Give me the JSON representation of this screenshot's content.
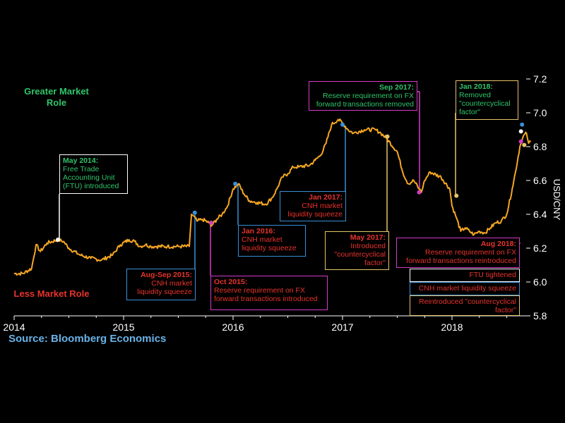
{
  "source": "Source: Bloomberg Economics",
  "roles": {
    "greater": "Greater Market Role",
    "less": "Less Market Role"
  },
  "colors": {
    "line": "#f5a623",
    "green": "#2fc56a",
    "red": "#e8332b",
    "blue": "#3a8fd6",
    "magenta": "#d43cc6",
    "yellow": "#e6c36a",
    "white": "#ffffff",
    "source": "#6ab2e6"
  },
  "annotations": {
    "may2014": {
      "header": "May 2014:",
      "body": "Free Trade Accounting Unit (FTU) introduced"
    },
    "aug2015": {
      "header": "Aug-Sep 2015:",
      "body": "CNH market liquidity squeeze"
    },
    "oct2015": {
      "header": "Oct 2015:",
      "body": "Reserve requirement on FX forward transactions introduced"
    },
    "jan2016": {
      "header": "Jan 2016:",
      "body": "CNH market liquidity squeeze"
    },
    "jan2017": {
      "header": "Jan 2017:",
      "body": "CNH market liquidity squeeze"
    },
    "may2017": {
      "header": "May 2017:",
      "body": "Introduced \"countercyclical factor\""
    },
    "sep2017": {
      "header": "Sep 2017:",
      "body": "Reserve requirement on FX forward transactions removed"
    },
    "jan2018": {
      "header": "Jan 2018:",
      "body": "Removed \"countercyclical factor\""
    },
    "aug2018": {
      "header": "Aug 2018:",
      "body": "Reserve requirement on FX forward transactions reintroduced"
    },
    "ftu_tightened": {
      "body": "FTU tightened"
    },
    "cnh_squeeze": {
      "body": "CNH market liquidity squeeze"
    },
    "reintroduced": {
      "body": "Reintroduced \"countercyclical factor\""
    }
  },
  "chart_data": {
    "type": "line",
    "title": "",
    "xlabel": "",
    "ylabel": "USD/CNY",
    "xlim": [
      2014.0,
      2018.72
    ],
    "ylim": [
      5.8,
      7.2
    ],
    "x_ticks": [
      {
        "value": 2014,
        "label": "2014"
      },
      {
        "value": 2015,
        "label": "2015"
      },
      {
        "value": 2016,
        "label": "2016"
      },
      {
        "value": 2017,
        "label": "2017"
      },
      {
        "value": 2018,
        "label": "2018"
      }
    ],
    "y_ticks": [
      {
        "value": 5.8,
        "label": "5.8"
      },
      {
        "value": 6.0,
        "label": "6.0"
      },
      {
        "value": 6.2,
        "label": "6.2"
      },
      {
        "value": 6.4,
        "label": "6.4"
      },
      {
        "value": 6.6,
        "label": "6.6"
      },
      {
        "value": 6.8,
        "label": "6.8"
      },
      {
        "value": 7.0,
        "label": "7.0"
      },
      {
        "value": 7.2,
        "label": "7.2"
      }
    ],
    "y_axis_position": "right",
    "grid": false,
    "series": [
      {
        "x": [
          2014.0,
          2014.08,
          2014.16,
          2014.2,
          2014.24,
          2014.3,
          2014.4,
          2014.45,
          2014.5,
          2014.6,
          2014.7,
          2014.8,
          2014.9,
          2014.97,
          2015.05,
          2015.1,
          2015.15,
          2015.2,
          2015.25,
          2015.3,
          2015.4,
          2015.5,
          2015.6,
          2015.62,
          2015.64,
          2015.67,
          2015.72,
          2015.78,
          2015.8,
          2015.85,
          2015.9,
          2015.95,
          2016.0,
          2016.05,
          2016.1,
          2016.15,
          2016.22,
          2016.3,
          2016.36,
          2016.4,
          2016.45,
          2016.5,
          2016.55,
          2016.6,
          2016.7,
          2016.75,
          2016.8,
          2016.85,
          2016.9,
          2016.96,
          2017.0,
          2017.05,
          2017.1,
          2017.2,
          2017.3,
          2017.35,
          2017.4,
          2017.5,
          2017.55,
          2017.6,
          2017.65,
          2017.7,
          2017.72,
          2017.75,
          2017.8,
          2017.9,
          2017.98,
          2018.0,
          2018.04,
          2018.08,
          2018.12,
          2018.16,
          2018.2,
          2018.25,
          2018.3,
          2018.35,
          2018.4,
          2018.45,
          2018.5,
          2018.55,
          2018.58,
          2018.62,
          2018.65,
          2018.68,
          2018.7,
          2018.72
        ],
        "values": [
          6.05,
          6.05,
          6.08,
          6.22,
          6.18,
          6.23,
          6.25,
          6.24,
          6.2,
          6.16,
          6.14,
          6.13,
          6.16,
          6.22,
          6.25,
          6.24,
          6.21,
          6.22,
          6.21,
          6.21,
          6.21,
          6.21,
          6.21,
          6.4,
          6.39,
          6.36,
          6.37,
          6.35,
          6.33,
          6.37,
          6.4,
          6.45,
          6.55,
          6.58,
          6.52,
          6.48,
          6.47,
          6.46,
          6.5,
          6.55,
          6.62,
          6.64,
          6.68,
          6.68,
          6.69,
          6.72,
          6.75,
          6.82,
          6.93,
          6.96,
          6.94,
          6.9,
          6.88,
          6.9,
          6.9,
          6.88,
          6.85,
          6.77,
          6.65,
          6.58,
          6.6,
          6.55,
          6.53,
          6.6,
          6.65,
          6.62,
          6.55,
          6.45,
          6.38,
          6.3,
          6.32,
          6.3,
          6.28,
          6.3,
          6.29,
          6.32,
          6.35,
          6.36,
          6.4,
          6.55,
          6.65,
          6.8,
          6.86,
          6.88,
          6.82,
          6.83
        ]
      }
    ],
    "event_markers": [
      {
        "x": 2014.4,
        "y": 6.25,
        "color": "#ffffff"
      },
      {
        "x": 2015.65,
        "y": 6.41,
        "color": "#3a8fd6"
      },
      {
        "x": 2015.8,
        "y": 6.35,
        "color": "#d43cc6"
      },
      {
        "x": 2016.02,
        "y": 6.58,
        "color": "#3a8fd6"
      },
      {
        "x": 2017.0,
        "y": 6.93,
        "color": "#3a8fd6"
      },
      {
        "x": 2017.41,
        "y": 6.86,
        "color": "#e6c36a"
      },
      {
        "x": 2017.7,
        "y": 6.53,
        "color": "#d43cc6"
      },
      {
        "x": 2018.04,
        "y": 6.51,
        "color": "#e6c36a"
      },
      {
        "x": 2018.63,
        "y": 6.89,
        "color": "#ffffff"
      },
      {
        "x": 2018.64,
        "y": 6.93,
        "color": "#3a8fd6"
      },
      {
        "x": 2018.63,
        "y": 6.83,
        "color": "#d43cc6"
      },
      {
        "x": 2018.66,
        "y": 6.81,
        "color": "#e6c36a"
      }
    ]
  }
}
